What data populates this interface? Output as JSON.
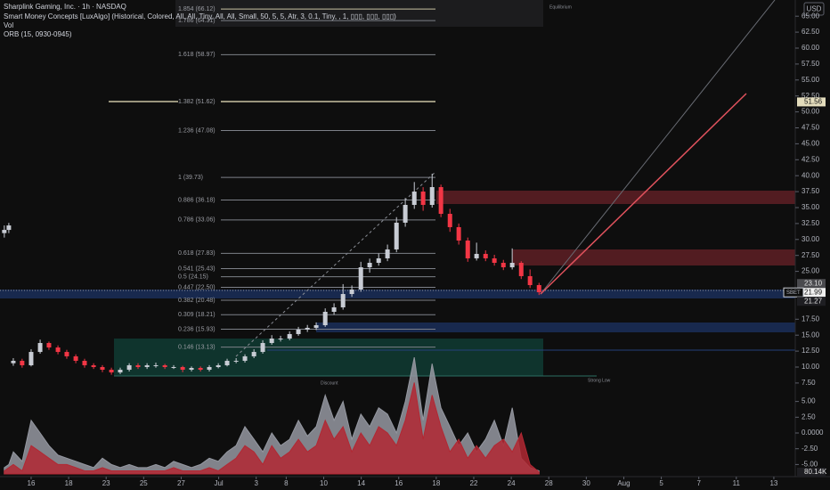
{
  "header": {
    "indicators": [
      "Smart Money Concepts [LuxAlgo] (Historical, Colored, All, All, Tiny, All, All, Small, 50, 5, 5, Atr, 3, 0.1, Tiny, , 1, ▯▯▯, ▯▯▯, ▯▯▯)",
      "Vol",
      "ORB (15, 0930-0945)"
    ],
    "currency": "USD"
  },
  "chart_data": [
    {
      "type": "candlestick",
      "title": "Sharplink Gaming, Inc. · 1h · NASDAQ",
      "x": [
        -1.43,
        -1.19,
        -0.95,
        -0.48,
        0,
        0.48,
        0.95,
        1.43,
        1.9,
        2.38,
        2.85,
        3.33,
        3.8,
        4.28,
        4.75,
        5.23,
        5.7,
        6.18,
        6.65,
        7.13,
        7.6,
        8.08,
        8.55,
        9.03,
        9.5,
        9.98,
        10.45,
        10.93,
        11.4,
        11.88,
        12.35,
        12.83,
        13.3,
        13.78,
        14.25,
        14.73,
        15.2,
        15.68,
        16.15,
        16.63,
        17.1,
        17.58,
        18.05,
        18.53,
        19.0,
        19.48,
        19.95,
        20.43,
        20.9,
        21.38,
        21.85,
        22.33,
        22.8,
        23.28,
        23.75,
        24.23,
        24.7,
        25.18,
        25.65,
        26.13,
        26.6,
        27.08
      ],
      "open": [
        31.0,
        31.5,
        10.6,
        10.98,
        10.28,
        12.37,
        13.77,
        13.07,
        12.37,
        11.68,
        10.98,
        10.28,
        10.0,
        9.58,
        9.16,
        9.58,
        10.28,
        10.0,
        10.28,
        10.28,
        10.0,
        10.0,
        9.58,
        9.86,
        9.58,
        10.0,
        10.28,
        10.98,
        10.98,
        11.68,
        12.37,
        13.77,
        14.47,
        14.47,
        15.17,
        15.87,
        16.15,
        16.56,
        18.66,
        19.36,
        21.45,
        22.15,
        25.64,
        26.34,
        27.04,
        28.44,
        32.63,
        35.42,
        37.51,
        35.42,
        38.21,
        34.02,
        31.93,
        29.83,
        27.04,
        27.74,
        27.04,
        26.34,
        25.64,
        26.34,
        24.25,
        22.85
      ],
      "high": [
        32.2,
        32.6,
        11.4,
        11.3,
        12.8,
        14.3,
        14.0,
        13.4,
        12.7,
        12.0,
        11.3,
        10.6,
        10.3,
        9.9,
        9.9,
        10.6,
        10.6,
        10.6,
        10.7,
        10.5,
        10.3,
        10.2,
        10.1,
        10.1,
        10.3,
        10.6,
        11.3,
        11.4,
        12.0,
        12.8,
        14.2,
        15.0,
        14.9,
        15.6,
        16.3,
        16.6,
        17.0,
        19.2,
        20.0,
        23.0,
        22.8,
        26.5,
        27.0,
        27.8,
        29.2,
        33.5,
        36.5,
        39.0,
        38.2,
        40.3,
        38.6,
        34.8,
        32.5,
        30.3,
        29.5,
        28.3,
        27.6,
        26.8,
        28.6,
        26.6,
        25.3,
        23.2
      ],
      "low": [
        30.3,
        31.0,
        10.2,
        9.9,
        10.1,
        12.1,
        12.7,
        12.0,
        11.3,
        10.6,
        9.9,
        9.7,
        9.2,
        8.8,
        8.9,
        9.3,
        9.7,
        9.7,
        9.9,
        9.7,
        9.7,
        9.2,
        9.3,
        9.3,
        9.3,
        9.8,
        10.1,
        10.6,
        10.7,
        11.4,
        12.1,
        13.5,
        14.0,
        14.2,
        14.9,
        15.5,
        15.8,
        16.3,
        18.2,
        19.0,
        21.0,
        21.8,
        24.8,
        25.9,
        26.6,
        28.0,
        32.0,
        34.8,
        34.5,
        35.0,
        33.5,
        31.2,
        29.2,
        26.5,
        26.7,
        26.6,
        25.9,
        25.2,
        25.3,
        23.8,
        22.4,
        21.3
      ],
      "close": [
        31.5,
        32.2,
        10.98,
        10.28,
        12.37,
        13.77,
        13.07,
        12.37,
        11.68,
        10.98,
        10.28,
        10.0,
        9.58,
        9.16,
        9.58,
        10.28,
        10.0,
        10.28,
        10.28,
        10.0,
        10.0,
        9.58,
        9.86,
        9.58,
        10.0,
        10.28,
        10.98,
        10.98,
        11.68,
        12.37,
        13.77,
        14.47,
        14.47,
        15.17,
        15.87,
        16.15,
        16.56,
        18.66,
        19.36,
        21.45,
        22.15,
        25.64,
        26.34,
        27.04,
        28.44,
        32.63,
        35.42,
        37.51,
        35.42,
        38.21,
        34.02,
        31.93,
        29.83,
        27.04,
        27.74,
        27.04,
        26.34,
        25.64,
        26.34,
        24.25,
        22.85,
        21.73
      ],
      "up_color": "#c8ccd4",
      "down_color": "#f23645",
      "xlim": [
        -1.66,
        40.6
      ],
      "xticks": [
        {
          "value": 0,
          "label": "16"
        },
        {
          "value": 2,
          "label": "18"
        },
        {
          "value": 4,
          "label": "23"
        },
        {
          "value": 6,
          "label": "25"
        },
        {
          "value": 8,
          "label": "27"
        },
        {
          "value": 10,
          "label": "Jul"
        },
        {
          "value": 12,
          "label": "3"
        },
        {
          "value": 13.6,
          "label": "8"
        },
        {
          "value": 15.6,
          "label": "10"
        },
        {
          "value": 17.6,
          "label": "14"
        },
        {
          "value": 19.6,
          "label": "16"
        },
        {
          "value": 21.6,
          "label": "18"
        },
        {
          "value": 23.6,
          "label": "22"
        },
        {
          "value": 25.6,
          "label": "24"
        },
        {
          "value": 27.6,
          "label": "28"
        },
        {
          "value": 29.6,
          "label": "30"
        },
        {
          "value": 31.6,
          "label": "Aug"
        },
        {
          "value": 33.6,
          "label": "5"
        },
        {
          "value": 35.6,
          "label": "7"
        },
        {
          "value": 37.6,
          "label": "11"
        },
        {
          "value": 39.6,
          "label": "13"
        }
      ],
      "ylim": [
        6.09,
        67.54
      ],
      "yticks": [
        {
          "value": 65,
          "label": "65.00"
        },
        {
          "value": 62.5,
          "label": "62.50"
        },
        {
          "value": 60,
          "label": "60.00"
        },
        {
          "value": 57.5,
          "label": "57.50"
        },
        {
          "value": 55,
          "label": "55.00"
        },
        {
          "value": 52.5,
          "label": "52.50"
        },
        {
          "value": 50,
          "label": "50.00"
        },
        {
          "value": 47.5,
          "label": "47.50"
        },
        {
          "value": 45,
          "label": "45.00"
        },
        {
          "value": 42.5,
          "label": "42.50"
        },
        {
          "value": 40,
          "label": "40.00"
        },
        {
          "value": 37.5,
          "label": "37.50"
        },
        {
          "value": 35,
          "label": "35.00"
        },
        {
          "value": 32.5,
          "label": "32.50"
        },
        {
          "value": 30,
          "label": "30.00"
        },
        {
          "value": 27.5,
          "label": "27.50"
        },
        {
          "value": 25,
          "label": "25.00"
        },
        {
          "value": 17.5,
          "label": "17.50"
        },
        {
          "value": 15,
          "label": "15.00"
        },
        {
          "value": 12.5,
          "label": "12.50"
        },
        {
          "value": 10,
          "label": "10.00"
        },
        {
          "value": 7.5,
          "label": "7.50"
        }
      ],
      "fib_levels": [
        {
          "label": "1.854 (66.12)",
          "value": 66.12
        },
        {
          "label": "1.786 (64.31)",
          "value": 64.31
        },
        {
          "label": "1.618 (58.97)",
          "value": 58.97
        },
        {
          "label": "1.382 (51.62)",
          "value": 51.62
        },
        {
          "label": "1.236 (47.08)",
          "value": 47.08
        },
        {
          "label": "1 (39.73)",
          "value": 39.73
        },
        {
          "label": "0.886 (36.18)",
          "value": 36.18
        },
        {
          "label": "0.786 (33.06)",
          "value": 33.06
        },
        {
          "label": "0.618 (27.83)",
          "value": 27.83
        },
        {
          "label": "0.541 (25.43)",
          "value": 25.43
        },
        {
          "label": "0.5 (24.15)",
          "value": 24.15
        },
        {
          "label": "0.447 (22.50)",
          "value": 22.5
        },
        {
          "label": "0.382 (20.48)",
          "value": 20.48
        },
        {
          "label": "0.309 (18.21)",
          "value": 18.21
        },
        {
          "label": "0.236 (15.93)",
          "value": 15.93
        },
        {
          "label": "0.146 (13.13)",
          "value": 13.13
        }
      ],
      "price_tags": [
        51.56,
        {
          "value": 23.1,
          "label": "23.10"
        },
        21.99,
        21.27
      ],
      "symbol_tag": "SBET",
      "annotations": [
        "Equilibrium",
        "Discount",
        "Strong Low"
      ]
    },
    {
      "type": "area",
      "x": [
        -1.43,
        -1.19,
        -0.95,
        -0.48,
        0,
        0.48,
        0.95,
        1.43,
        1.9,
        2.38,
        2.85,
        3.33,
        3.8,
        4.28,
        4.75,
        5.23,
        5.7,
        6.18,
        6.65,
        7.13,
        7.6,
        8.08,
        8.55,
        9.03,
        9.5,
        9.98,
        10.45,
        10.93,
        11.4,
        11.88,
        12.35,
        12.83,
        13.3,
        13.78,
        14.25,
        14.73,
        15.2,
        15.68,
        16.15,
        16.63,
        17.1,
        17.58,
        18.05,
        18.53,
        19.0,
        19.48,
        19.95,
        20.43,
        20.9,
        21.38,
        21.85,
        22.33,
        22.8,
        23.28,
        23.75,
        24.23,
        24.7,
        25.18,
        25.65,
        26.13,
        26.6,
        27.08
      ],
      "series": [
        {
          "color": "#9598a1",
          "values": [
            -5.5,
            -5,
            -3,
            -4.5,
            2,
            0,
            -2,
            -3.5,
            -4,
            -4.5,
            -5,
            -5.5,
            -4,
            -5,
            -5.5,
            -5,
            -5.5,
            -5.5,
            -5,
            -5.5,
            -4.5,
            -5,
            -5.5,
            -5,
            -4,
            -4.5,
            -3,
            -2,
            1,
            -1,
            -3,
            0,
            -2,
            -1,
            2,
            -0.5,
            1,
            6,
            2,
            5,
            -1,
            3,
            1,
            4,
            3,
            0,
            5,
            12,
            2,
            11,
            4,
            1,
            -2,
            0,
            -3,
            -1,
            2,
            -2,
            4,
            -4,
            -5.5,
            -6
          ]
        },
        {
          "color": "#b22833",
          "values": [
            -6,
            -5.5,
            -5,
            -6,
            -2,
            -3,
            -4,
            -5,
            -5,
            -5.5,
            -6,
            -6,
            -5.5,
            -6,
            -6,
            -6,
            -6,
            -6,
            -6,
            -6,
            -5.5,
            -6,
            -6,
            -6,
            -5.5,
            -6,
            -5,
            -4,
            -2,
            -3,
            -5,
            -2,
            -4,
            -3,
            -1,
            -3,
            -2,
            2,
            -1,
            1,
            -3,
            0,
            -2,
            1,
            0,
            -2,
            2,
            8,
            -1,
            6,
            1,
            -3,
            -1,
            -4,
            -2,
            -4,
            -2,
            -1,
            -3,
            0,
            -5,
            -6.2
          ]
        }
      ],
      "ylim": [
        -6.5,
        6.5
      ],
      "yticks": [
        {
          "value": 5,
          "label": "5.00"
        },
        {
          "value": 2.5,
          "label": "2.50"
        },
        {
          "value": 0,
          "label": "0.0000"
        },
        {
          "value": -2.5,
          "label": "-2.50"
        },
        {
          "value": -5,
          "label": "-5.00"
        }
      ],
      "last_value_label": "80.14K"
    }
  ]
}
